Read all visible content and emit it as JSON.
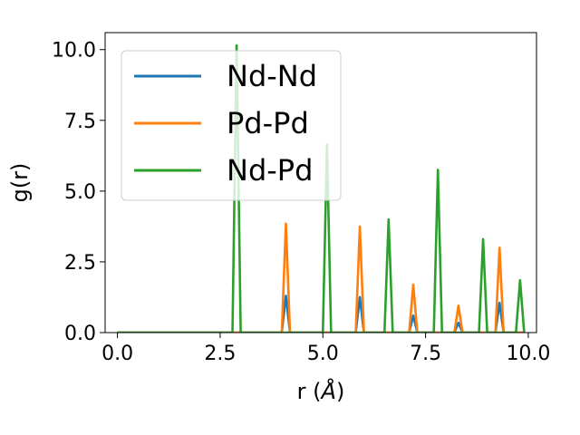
{
  "chart_data": {
    "type": "line",
    "title": "",
    "xlabel": "r (",
    "xlabel_unit": "Å",
    "xlabel_close": ")",
    "ylabel": "g(r)",
    "xlim": [
      -0.3,
      10.2
    ],
    "ylim": [
      0,
      10.6
    ],
    "xticks": [
      0.0,
      2.5,
      5.0,
      7.5,
      10.0
    ],
    "xtick_labels": [
      "0.0",
      "2.5",
      "5.0",
      "7.5",
      "10.0"
    ],
    "yticks": [
      0.0,
      2.5,
      5.0,
      7.5,
      10.0
    ],
    "ytick_labels": [
      "0.0",
      "2.5",
      "5.0",
      "7.5",
      "10.0"
    ],
    "grid": false,
    "legend_position": "top-left",
    "series": [
      {
        "name": "Nd-Nd",
        "color": "#1f77b4",
        "x": [
          0.0,
          4.0,
          4.1,
          4.2,
          5.8,
          5.9,
          6.0,
          7.1,
          7.2,
          7.3,
          8.2,
          8.3,
          8.4,
          9.2,
          9.3,
          9.4,
          9.9
        ],
        "y": [
          0.0,
          0.0,
          1.3,
          0.0,
          0.0,
          1.25,
          0.0,
          0.0,
          0.6,
          0.0,
          0.0,
          0.35,
          0.0,
          0.0,
          1.05,
          0.0,
          0.0
        ]
      },
      {
        "name": "Pd-Pd",
        "color": "#ff7f0e",
        "x": [
          0.0,
          4.0,
          4.1,
          4.2,
          5.8,
          5.9,
          6.0,
          7.1,
          7.2,
          7.3,
          8.2,
          8.3,
          8.4,
          9.2,
          9.3,
          9.4,
          9.9
        ],
        "y": [
          0.0,
          0.0,
          3.85,
          0.0,
          0.0,
          3.75,
          0.0,
          0.0,
          1.7,
          0.0,
          0.0,
          0.95,
          0.0,
          0.0,
          3.0,
          0.0,
          0.0
        ]
      },
      {
        "name": "Nd-Pd",
        "color": "#2ca02c",
        "x": [
          0.0,
          2.8,
          2.9,
          3.0,
          5.0,
          5.1,
          5.2,
          6.5,
          6.6,
          6.7,
          7.7,
          7.8,
          7.9,
          8.8,
          8.9,
          9.0,
          9.7,
          9.8,
          9.9
        ],
        "y": [
          0.0,
          0.0,
          10.15,
          0.0,
          0.0,
          6.65,
          0.0,
          0.0,
          4.0,
          0.0,
          0.0,
          5.75,
          0.0,
          0.0,
          3.3,
          0.0,
          0.0,
          1.85,
          0.0
        ]
      }
    ]
  }
}
